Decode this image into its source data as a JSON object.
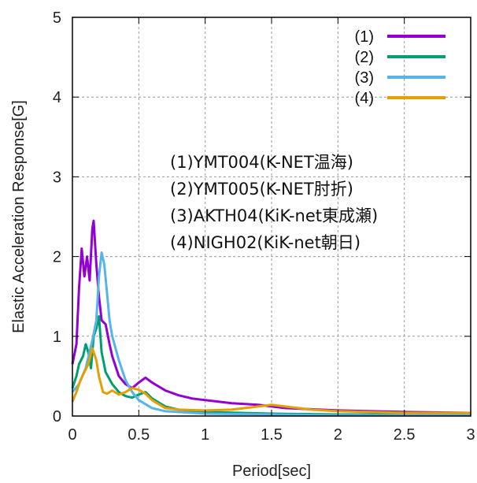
{
  "chart_data": {
    "type": "line",
    "xlabel": "Period[sec]",
    "ylabel": "Elastic Acceleration Response[G]",
    "xlim": [
      0,
      3
    ],
    "ylim": [
      0,
      5
    ],
    "xticks": [
      "0",
      "0.5",
      "1",
      "1.5",
      "2",
      "2.5",
      "3"
    ],
    "yticks": [
      "0",
      "1",
      "2",
      "3",
      "4",
      "5"
    ],
    "grid": true,
    "legend_position": "top-right",
    "annotations": [
      "(1)YMT004(K-NET温海)",
      "(2)YMT005(K-NET肘折)",
      "(3)AKTH04(KiK-net東成瀬)",
      "(4)NIGH02(KiK-net朝日)"
    ],
    "series": [
      {
        "name": "(1)",
        "color": "#9400d3",
        "points": [
          [
            0.0,
            0.65
          ],
          [
            0.03,
            0.9
          ],
          [
            0.05,
            1.6
          ],
          [
            0.07,
            2.1
          ],
          [
            0.09,
            1.75
          ],
          [
            0.11,
            2.0
          ],
          [
            0.13,
            1.7
          ],
          [
            0.15,
            2.35
          ],
          [
            0.16,
            2.45
          ],
          [
            0.18,
            1.9
          ],
          [
            0.2,
            1.5
          ],
          [
            0.22,
            1.2
          ],
          [
            0.25,
            1.15
          ],
          [
            0.28,
            0.9
          ],
          [
            0.3,
            0.75
          ],
          [
            0.35,
            0.5
          ],
          [
            0.4,
            0.4
          ],
          [
            0.45,
            0.35
          ],
          [
            0.5,
            0.42
          ],
          [
            0.55,
            0.48
          ],
          [
            0.6,
            0.42
          ],
          [
            0.7,
            0.32
          ],
          [
            0.8,
            0.26
          ],
          [
            0.9,
            0.22
          ],
          [
            1.0,
            0.2
          ],
          [
            1.2,
            0.16
          ],
          [
            1.4,
            0.14
          ],
          [
            1.6,
            0.1
          ],
          [
            2.0,
            0.07
          ],
          [
            2.5,
            0.05
          ],
          [
            3.0,
            0.04
          ]
        ]
      },
      {
        "name": "(2)",
        "color": "#009e73",
        "points": [
          [
            0.0,
            0.35
          ],
          [
            0.03,
            0.5
          ],
          [
            0.05,
            0.65
          ],
          [
            0.08,
            0.75
          ],
          [
            0.1,
            0.9
          ],
          [
            0.12,
            0.8
          ],
          [
            0.14,
            0.6
          ],
          [
            0.16,
            1.0
          ],
          [
            0.18,
            1.1
          ],
          [
            0.2,
            1.25
          ],
          [
            0.22,
            0.8
          ],
          [
            0.25,
            0.55
          ],
          [
            0.3,
            0.4
          ],
          [
            0.35,
            0.3
          ],
          [
            0.4,
            0.25
          ],
          [
            0.45,
            0.23
          ],
          [
            0.5,
            0.27
          ],
          [
            0.55,
            0.3
          ],
          [
            0.6,
            0.22
          ],
          [
            0.7,
            0.12
          ],
          [
            0.8,
            0.08
          ],
          [
            1.0,
            0.05
          ],
          [
            1.5,
            0.03
          ],
          [
            2.0,
            0.02
          ],
          [
            3.0,
            0.02
          ]
        ]
      },
      {
        "name": "(3)",
        "color": "#56b4e9",
        "points": [
          [
            0.0,
            0.3
          ],
          [
            0.05,
            0.4
          ],
          [
            0.1,
            0.6
          ],
          [
            0.15,
            0.95
          ],
          [
            0.18,
            1.2
          ],
          [
            0.2,
            1.75
          ],
          [
            0.22,
            2.05
          ],
          [
            0.24,
            1.9
          ],
          [
            0.26,
            1.55
          ],
          [
            0.28,
            1.2
          ],
          [
            0.3,
            1.0
          ],
          [
            0.35,
            0.7
          ],
          [
            0.4,
            0.45
          ],
          [
            0.45,
            0.3
          ],
          [
            0.5,
            0.2
          ],
          [
            0.6,
            0.1
          ],
          [
            0.7,
            0.06
          ],
          [
            1.0,
            0.03
          ],
          [
            1.5,
            0.02
          ],
          [
            2.0,
            0.01
          ],
          [
            3.0,
            0.01
          ]
        ]
      },
      {
        "name": "(4)",
        "color": "#e69f00",
        "points": [
          [
            0.0,
            0.18
          ],
          [
            0.03,
            0.3
          ],
          [
            0.06,
            0.45
          ],
          [
            0.09,
            0.55
          ],
          [
            0.12,
            0.65
          ],
          [
            0.15,
            0.85
          ],
          [
            0.18,
            0.7
          ],
          [
            0.2,
            0.5
          ],
          [
            0.23,
            0.3
          ],
          [
            0.26,
            0.28
          ],
          [
            0.3,
            0.32
          ],
          [
            0.35,
            0.27
          ],
          [
            0.4,
            0.3
          ],
          [
            0.45,
            0.35
          ],
          [
            0.5,
            0.33
          ],
          [
            0.55,
            0.28
          ],
          [
            0.6,
            0.2
          ],
          [
            0.7,
            0.1
          ],
          [
            0.8,
            0.08
          ],
          [
            1.0,
            0.07
          ],
          [
            1.2,
            0.08
          ],
          [
            1.4,
            0.12
          ],
          [
            1.5,
            0.14
          ],
          [
            1.6,
            0.12
          ],
          [
            1.8,
            0.08
          ],
          [
            2.0,
            0.06
          ],
          [
            2.5,
            0.04
          ],
          [
            3.0,
            0.04
          ]
        ]
      }
    ]
  }
}
